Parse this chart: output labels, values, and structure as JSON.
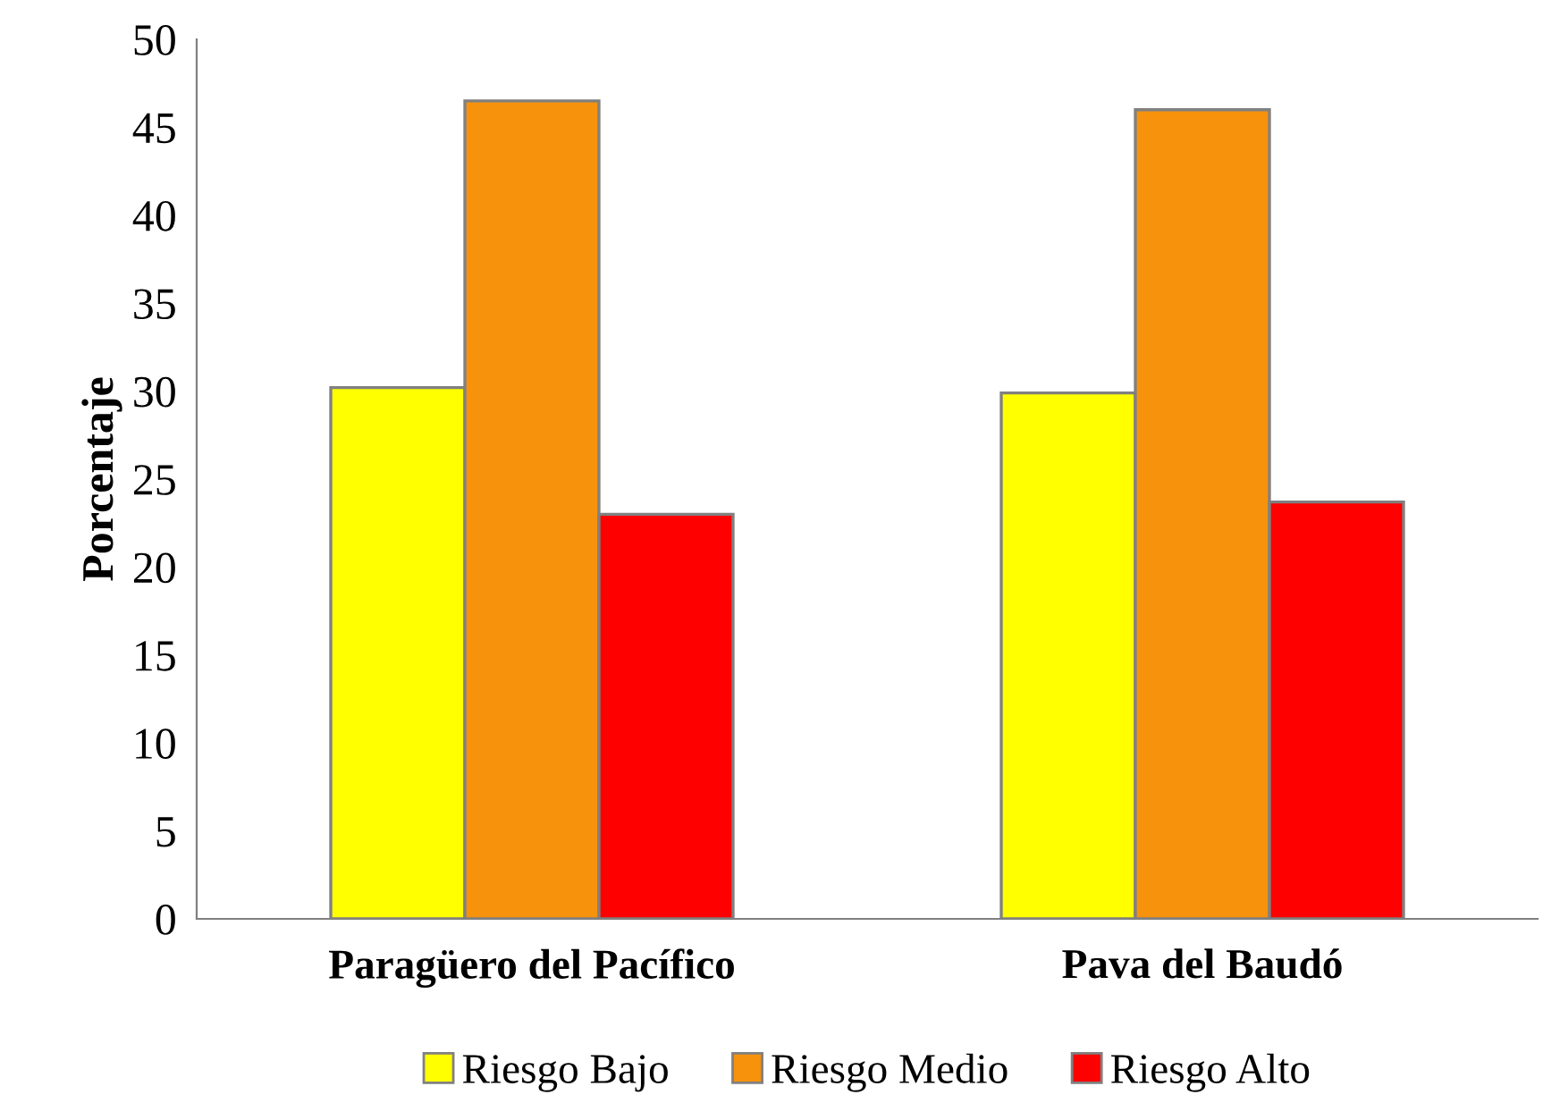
{
  "chart_data": {
    "type": "bar",
    "ylabel": "Porcentaje",
    "categories": [
      "Paragüero del Pacífico",
      "Pava del Baudó"
    ],
    "series": [
      {
        "name": "Riesgo Bajo",
        "color": "#ffff00",
        "values": [
          30.2,
          29.9
        ]
      },
      {
        "name": "Riesgo Medio",
        "color": "#f7920c",
        "values": [
          46.5,
          46.0
        ]
      },
      {
        "name": "Riesgo Alto",
        "color": "#ff0000",
        "values": [
          23.0,
          23.7
        ]
      }
    ],
    "ylim": [
      0,
      50
    ],
    "yticks": [
      0,
      5,
      10,
      15,
      20,
      25,
      30,
      35,
      40,
      45,
      50
    ],
    "grid": false,
    "legend": "bottom"
  }
}
